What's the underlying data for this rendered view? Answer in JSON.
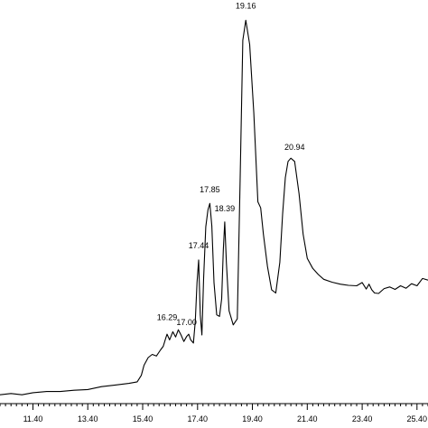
{
  "chart_data": {
    "type": "line",
    "title": "",
    "xlabel": "",
    "ylabel": "",
    "xlim": [
      10.2,
      25.8
    ],
    "ylim": [
      0,
      100
    ],
    "grid": false,
    "x_tick_labels": [
      "11.40",
      "13.40",
      "15.40",
      "17.40",
      "19.40",
      "21.40",
      "23.40",
      "25.40"
    ],
    "x_tick_values": [
      11.4,
      13.4,
      15.4,
      17.4,
      19.4,
      21.4,
      23.4,
      25.4
    ],
    "peak_labels": [
      {
        "label": "16.29",
        "x": 16.29,
        "y": 19.8
      },
      {
        "label": "17.00",
        "x": 17.0,
        "y": 18.6
      },
      {
        "label": "17.44",
        "x": 17.44,
        "y": 37.6
      },
      {
        "label": "17.85",
        "x": 17.85,
        "y": 51.4
      },
      {
        "label": "18.39",
        "x": 18.39,
        "y": 46.8
      },
      {
        "label": "19.16",
        "x": 19.16,
        "y": 97.0
      },
      {
        "label": "20.94",
        "x": 20.94,
        "y": 62.0
      }
    ],
    "series": [
      {
        "x": [
          10.2,
          10.6,
          11.0,
          11.4,
          11.9,
          12.4,
          12.9,
          13.4,
          13.9,
          14.4,
          14.9,
          15.2,
          15.35,
          15.45,
          15.6,
          15.75,
          15.9,
          16.05,
          16.15,
          16.25,
          16.29,
          16.38,
          16.5,
          16.6,
          16.7,
          16.8,
          16.9,
          17.0,
          17.08,
          17.15,
          17.25,
          17.32,
          17.38,
          17.44,
          17.5,
          17.56,
          17.62,
          17.7,
          17.78,
          17.85,
          17.92,
          18.0,
          18.1,
          18.2,
          18.28,
          18.34,
          18.39,
          18.45,
          18.55,
          18.7,
          18.85,
          18.95,
          19.05,
          19.16,
          19.3,
          19.45,
          19.6,
          19.7,
          19.8,
          19.95,
          20.1,
          20.25,
          20.4,
          20.5,
          20.6,
          20.7,
          20.8,
          20.94,
          21.1,
          21.25,
          21.4,
          21.6,
          21.8,
          22.0,
          22.3,
          22.6,
          22.9,
          23.2,
          23.4,
          23.55,
          23.65,
          23.75,
          23.85,
          24.0,
          24.2,
          24.4,
          24.6,
          24.8,
          25.0,
          25.2,
          25.4,
          25.6,
          25.8
        ],
        "y": [
          2.2,
          2.5,
          2.2,
          2.7,
          3.0,
          3.0,
          3.3,
          3.5,
          4.2,
          4.6,
          5.0,
          5.4,
          7.0,
          9.5,
          11.4,
          12.2,
          11.8,
          13.3,
          14.2,
          16.4,
          17.2,
          15.8,
          17.8,
          16.5,
          18.3,
          17.0,
          15.4,
          16.6,
          17.2,
          15.8,
          15.0,
          20.5,
          30.0,
          35.6,
          22.0,
          17.0,
          31.0,
          43.8,
          48.0,
          49.6,
          44.0,
          30.0,
          22.0,
          21.6,
          26.0,
          38.0,
          45.0,
          35.0,
          23.0,
          19.5,
          21.0,
          55.0,
          90.0,
          95.0,
          89.0,
          72.0,
          50.0,
          48.5,
          42.0,
          34.0,
          28.2,
          27.4,
          35.0,
          47.0,
          56.0,
          60.0,
          60.8,
          60.0,
          52.0,
          42.0,
          36.0,
          33.5,
          32.0,
          30.8,
          30.1,
          29.6,
          29.3,
          29.2,
          30.0,
          28.4,
          29.6,
          28.2,
          27.4,
          27.3,
          28.5,
          28.9,
          28.3,
          29.2,
          28.6,
          29.7,
          29.2,
          31.0,
          30.6
        ]
      }
    ]
  }
}
